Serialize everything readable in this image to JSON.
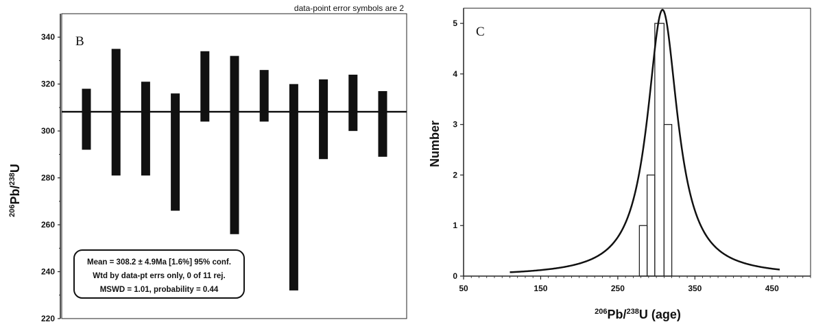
{
  "chart_data": [
    {
      "type": "error-bar",
      "panel_label": "B",
      "note": "data-point error symbols are 2",
      "ylabel": {
        "base": "Pb/",
        "iso1": "206",
        "iso2": "238",
        "elem": "U"
      },
      "ylim": [
        220,
        350
      ],
      "yticks": [
        220,
        240,
        260,
        280,
        300,
        320,
        340
      ],
      "mean_line": 308.2,
      "bars": [
        {
          "low": 292,
          "high": 318
        },
        {
          "low": 281,
          "high": 335
        },
        {
          "low": 281,
          "high": 321
        },
        {
          "low": 266,
          "high": 316
        },
        {
          "low": 304,
          "high": 334
        },
        {
          "low": 256,
          "high": 332
        },
        {
          "low": 304,
          "high": 326
        },
        {
          "low": 232,
          "high": 320
        },
        {
          "low": 288,
          "high": 322
        },
        {
          "low": 300,
          "high": 324
        },
        {
          "low": 289,
          "high": 317
        }
      ],
      "stats_box": [
        "Mean = 308.2 ± 4.9Ma [1.6%] 95% conf.",
        "Wtd by data-pt errs only, 0 of 11 rej.",
        "MSWD = 1.01, probability = 0.44"
      ]
    },
    {
      "type": "histogram",
      "panel_label": "C",
      "ylabel": "Number",
      "xlabel": {
        "iso1": "206",
        "mid": "Pb/",
        "iso2": "238",
        "end": "U (age)"
      },
      "xlim": [
        50,
        500
      ],
      "xticks": [
        50,
        150,
        250,
        350,
        450
      ],
      "ylim": [
        0,
        5.3
      ],
      "yticks": [
        0,
        1,
        2,
        3,
        4,
        5
      ],
      "bins": [
        {
          "x0": 278,
          "x1": 288,
          "count": 1
        },
        {
          "x0": 288,
          "x1": 298,
          "count": 2
        },
        {
          "x0": 298,
          "x1": 310,
          "count": 5
        },
        {
          "x0": 310,
          "x1": 320,
          "count": 3
        }
      ],
      "curve": {
        "type": "probability-density",
        "peak_x": 308,
        "peak_y": 5.27,
        "gamma": 24
      }
    }
  ]
}
